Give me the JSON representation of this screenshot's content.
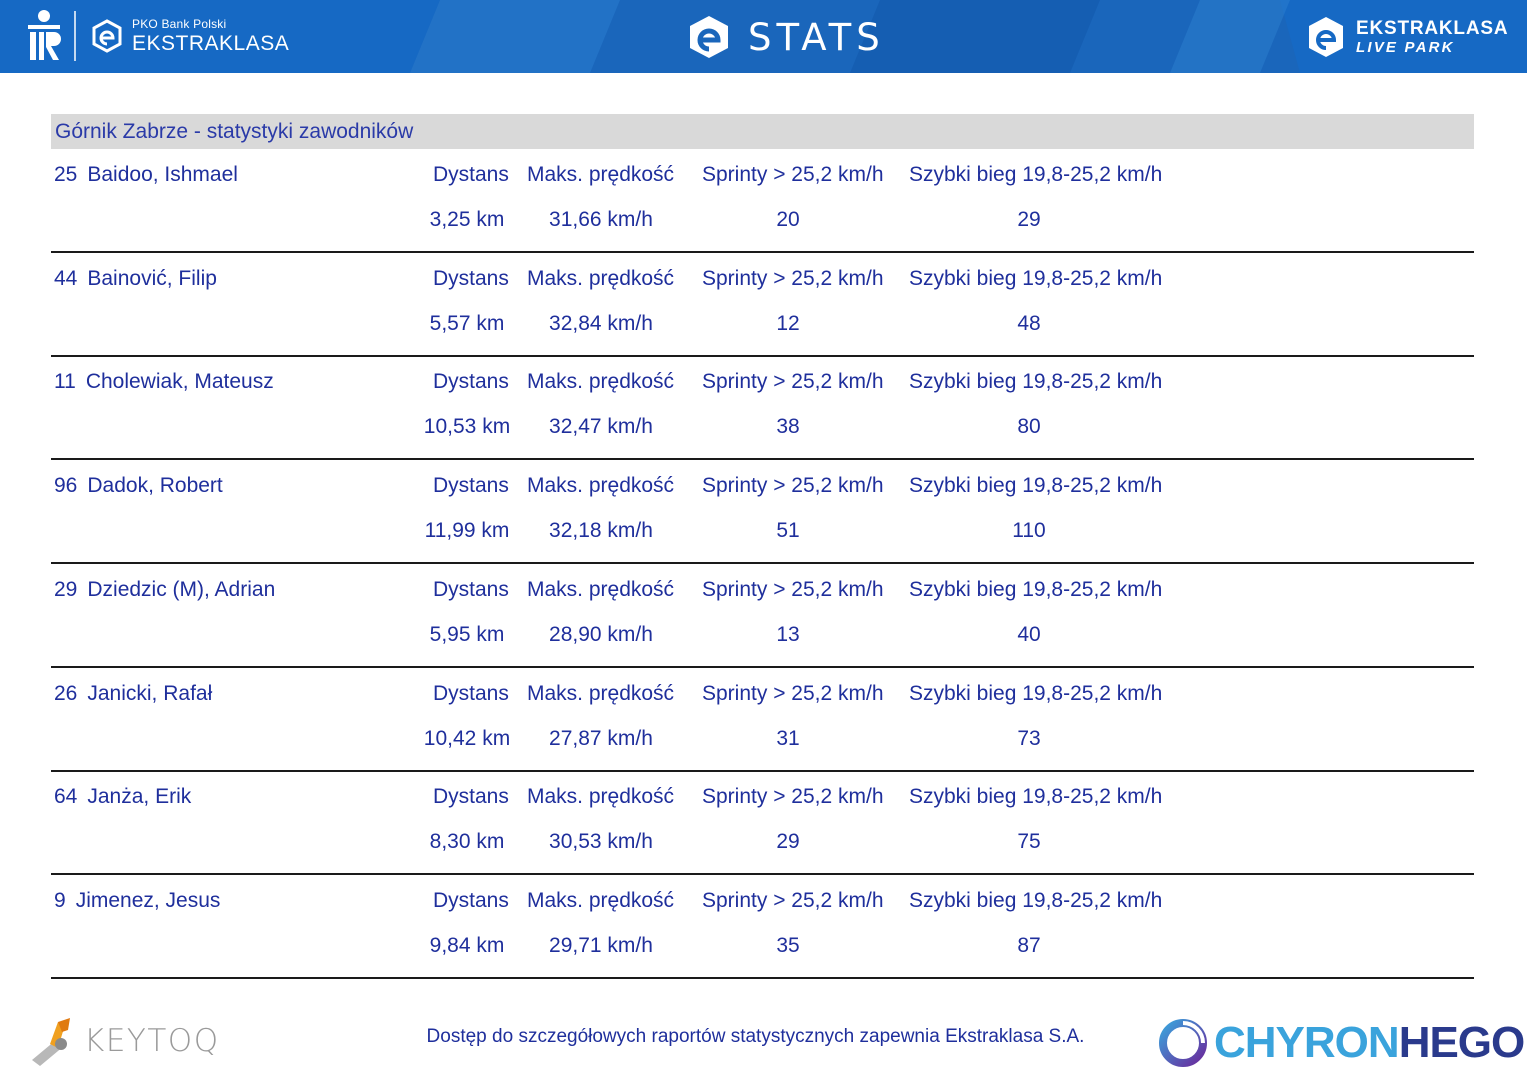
{
  "header": {
    "sponsor_small": "PKO Bank Polski",
    "league_name": "EKSTRAKLASA",
    "title": "STATS",
    "partner_line1": "EKSTRAKLASA",
    "partner_line2": "LIVE PARK",
    "colors": {
      "bar": "#1f6fc2",
      "bar_dark": "#0d4f9e",
      "text": "#ffffff"
    }
  },
  "team": {
    "title": "Górnik Zabrze - statystyki zawodników"
  },
  "columns": {
    "distance": "Dystans",
    "max_speed": "Maks. prędkość",
    "sprints": "Sprinty > 25,2 km/h",
    "fast_runs": "Szybki bieg 19,8-25,2 km/h"
  },
  "players": [
    {
      "number": "25",
      "name": "Baidoo, Ishmael",
      "distance": "3,25 km",
      "max_speed": "31,66 km/h",
      "sprints": "20",
      "fast_runs": "29"
    },
    {
      "number": "44",
      "name": "Bainović, Filip",
      "distance": "5,57 km",
      "max_speed": "32,84 km/h",
      "sprints": "12",
      "fast_runs": "48"
    },
    {
      "number": "11",
      "name": "Cholewiak, Mateusz",
      "distance": "10,53 km",
      "max_speed": "32,47 km/h",
      "sprints": "38",
      "fast_runs": "80"
    },
    {
      "number": "96",
      "name": "Dadok, Robert",
      "distance": "11,99 km",
      "max_speed": "32,18 km/h",
      "sprints": "51",
      "fast_runs": "110"
    },
    {
      "number": "29",
      "name": "Dziedzic (M), Adrian",
      "distance": "5,95 km",
      "max_speed": "28,90 km/h",
      "sprints": "13",
      "fast_runs": "40"
    },
    {
      "number": "26",
      "name": "Janicki, Rafał",
      "distance": "10,42 km",
      "max_speed": "27,87 km/h",
      "sprints": "31",
      "fast_runs": "73"
    },
    {
      "number": "64",
      "name": "Janża, Erik",
      "distance": "8,30 km",
      "max_speed": "30,53 km/h",
      "sprints": "29",
      "fast_runs": "75"
    },
    {
      "number": "9",
      "name": "Jimenez, Jesus",
      "distance": "9,84 km",
      "max_speed": "29,71 km/h",
      "sprints": "35",
      "fast_runs": "87"
    }
  ],
  "footer": {
    "keytoq_brand": "KEYTOQ",
    "note": "Dostęp do szczegółowych raportów statystycznych zapewnia Ekstraklasa S.A.",
    "chyron_part1": "CHYRON",
    "chyron_part2": "HEGO",
    "colors": {
      "text": "#1f2f9c",
      "chyron_light": "#3aa3dc",
      "chyron_dark": "#2a3a8c"
    }
  },
  "icons": [
    "pko-bank-logo-icon",
    "ekstraklasa-logo-icon",
    "stats-logo-icon",
    "live-park-logo-icon",
    "keytoq-logo-icon",
    "chyronhego-logo-icon"
  ]
}
